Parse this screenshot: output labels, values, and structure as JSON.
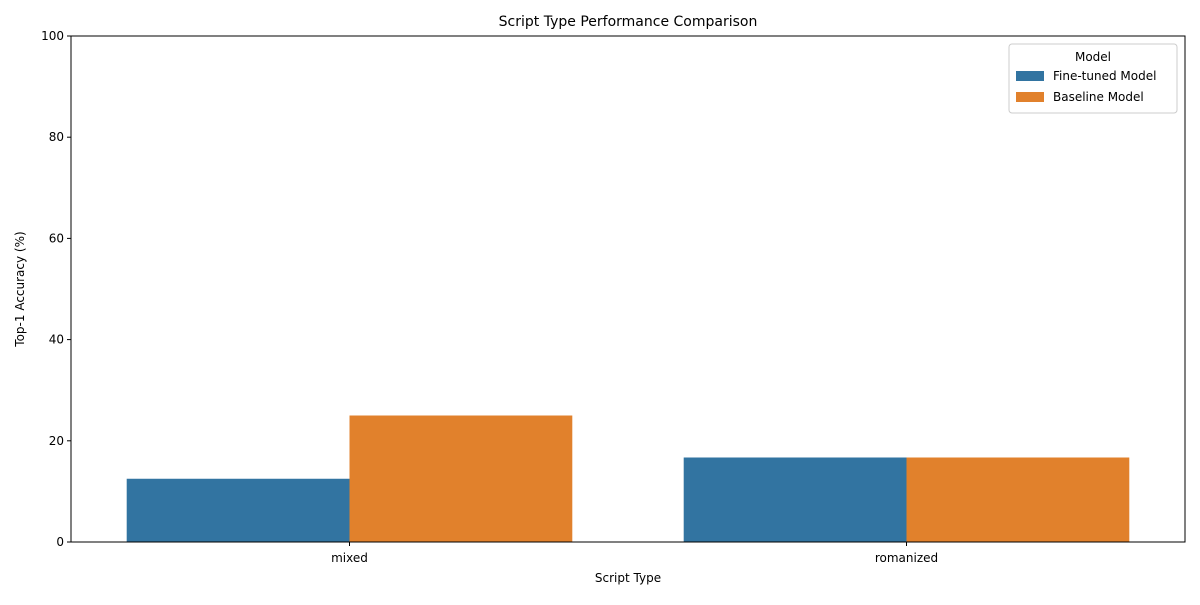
{
  "chart_data": {
    "type": "bar",
    "title": "Script Type Performance Comparison",
    "xlabel": "Script Type",
    "ylabel": "Top-1 Accuracy (%)",
    "categories": [
      "mixed",
      "romanized"
    ],
    "series": [
      {
        "name": "Fine-tuned Model",
        "values": [
          12.5,
          16.7
        ],
        "color": "#3274a1"
      },
      {
        "name": "Baseline Model",
        "values": [
          25.0,
          16.7
        ],
        "color": "#e1812c"
      }
    ],
    "ylim": [
      0,
      100
    ],
    "yticks": [
      0,
      20,
      40,
      60,
      80,
      100
    ],
    "grid": false,
    "legend": {
      "title": "Model",
      "placement": "top-right"
    }
  }
}
